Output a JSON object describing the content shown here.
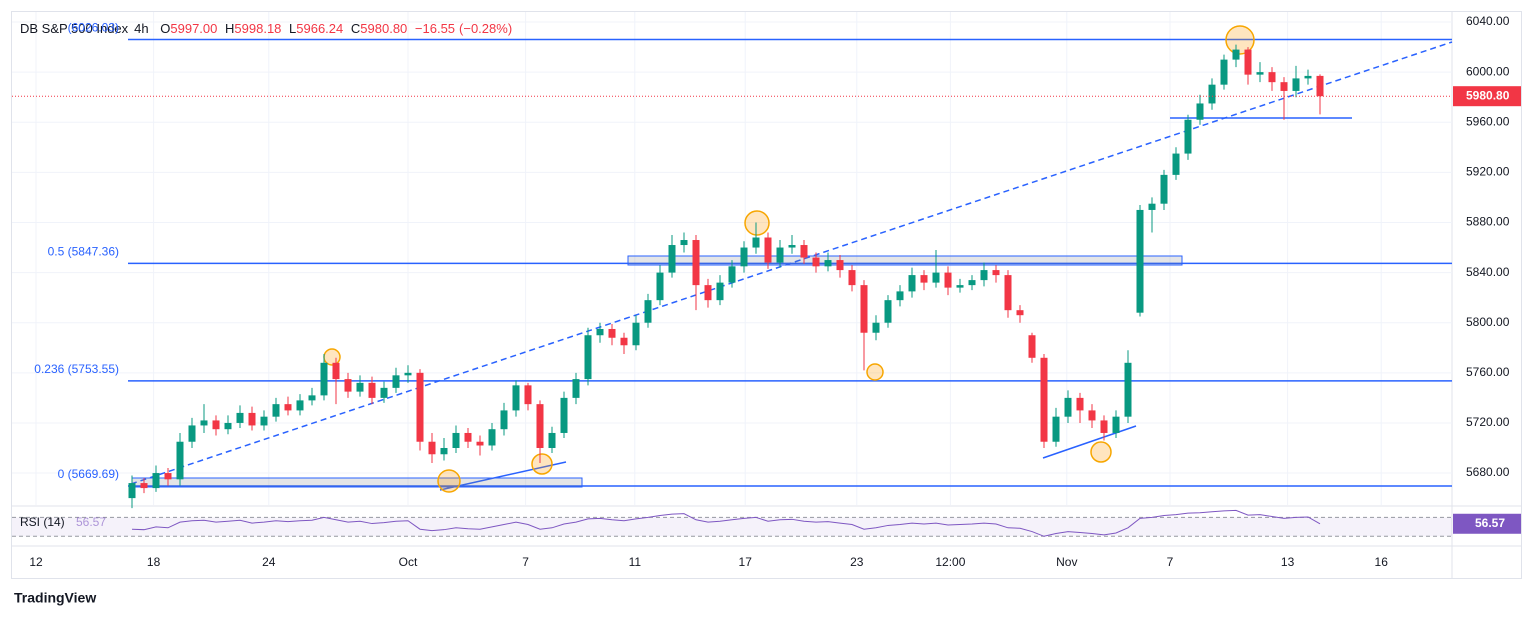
{
  "chart_data": {
    "type": "candlestick",
    "header": {
      "symbol": "DB S&P 500 Index",
      "interval": "4h",
      "open_label": "O",
      "open": "5997.00",
      "high_label": "H",
      "high": "5998.18",
      "low_label": "L",
      "low": "5966.24",
      "close_label": "C",
      "close": "5980.80",
      "change": "−16.55",
      "change_pct": "(−0.28%)"
    },
    "open": [
      5660,
      5672,
      5668,
      5680,
      5675,
      5705,
      5718,
      5722,
      5715,
      5720,
      5728,
      5718,
      5725,
      5735,
      5730,
      5738,
      5742,
      5768,
      5755,
      5745,
      5752,
      5740,
      5748,
      5758,
      5760,
      5705,
      5695,
      5700,
      5712,
      5705,
      5702,
      5715,
      5730,
      5750,
      5735,
      5700,
      5712,
      5740,
      5755,
      5790,
      5795,
      5788,
      5782,
      5800,
      5818,
      5840,
      5862,
      5866,
      5830,
      5818,
      5832,
      5845,
      5860,
      5868,
      5848,
      5860,
      5862,
      5852,
      5845,
      5850,
      5842,
      5830,
      5792,
      5800,
      5818,
      5825,
      5838,
      5832,
      5840,
      5828,
      5830,
      5834,
      5842,
      5838,
      5810,
      5790,
      5772,
      5705,
      5725,
      5740,
      5730,
      5722,
      5712,
      5725,
      5808,
      5890,
      5895,
      5918,
      5935,
      5962,
      5975,
      5990,
      6010,
      6018,
      5998,
      6000,
      5992,
      5985,
      5995,
      5997
    ],
    "high": [
      5678,
      5676,
      5686,
      5684,
      5712,
      5724,
      5735,
      5726,
      5726,
      5734,
      5733,
      5730,
      5740,
      5741,
      5743,
      5748,
      5775,
      5772,
      5760,
      5758,
      5757,
      5753,
      5764,
      5766,
      5763,
      5712,
      5708,
      5718,
      5716,
      5710,
      5720,
      5736,
      5754,
      5752,
      5738,
      5717,
      5745,
      5760,
      5796,
      5800,
      5799,
      5792,
      5806,
      5823,
      5846,
      5870,
      5872,
      5870,
      5835,
      5838,
      5850,
      5865,
      5880,
      5872,
      5866,
      5870,
      5866,
      5856,
      5856,
      5854,
      5846,
      5834,
      5806,
      5822,
      5830,
      5844,
      5842,
      5858,
      5845,
      5835,
      5838,
      5848,
      5846,
      5842,
      5814,
      5792,
      5775,
      5732,
      5746,
      5744,
      5735,
      5726,
      5730,
      5778,
      5894,
      5900,
      5922,
      5940,
      5966,
      5982,
      5995,
      6014,
      6022,
      6020,
      6008,
      6004,
      5996,
      6005,
      6002,
      5998.18
    ],
    "low": [
      5652,
      5664,
      5665,
      5670,
      5670,
      5700,
      5712,
      5710,
      5711,
      5716,
      5714,
      5714,
      5721,
      5726,
      5726,
      5734,
      5738,
      5735,
      5740,
      5741,
      5735,
      5736,
      5744,
      5752,
      5698,
      5688,
      5690,
      5696,
      5700,
      5694,
      5698,
      5710,
      5725,
      5730,
      5688,
      5696,
      5708,
      5735,
      5750,
      5784,
      5782,
      5775,
      5778,
      5796,
      5814,
      5836,
      5856,
      5810,
      5812,
      5814,
      5828,
      5840,
      5855,
      5843,
      5844,
      5855,
      5847,
      5840,
      5841,
      5836,
      5825,
      5762,
      5786,
      5796,
      5813,
      5820,
      5826,
      5828,
      5822,
      5824,
      5826,
      5829,
      5832,
      5804,
      5800,
      5768,
      5700,
      5701,
      5720,
      5720,
      5716,
      5706,
      5708,
      5720,
      5805,
      5872,
      5890,
      5914,
      5930,
      5958,
      5970,
      5986,
      6004,
      5990,
      5992,
      5985,
      5962,
      5980,
      5990,
      5966.24
    ],
    "close": [
      5672,
      5668,
      5680,
      5675,
      5705,
      5718,
      5722,
      5715,
      5720,
      5728,
      5718,
      5725,
      5735,
      5730,
      5738,
      5742,
      5768,
      5755,
      5745,
      5752,
      5740,
      5748,
      5758,
      5760,
      5705,
      5695,
      5700,
      5712,
      5705,
      5702,
      5715,
      5730,
      5750,
      5735,
      5700,
      5712,
      5740,
      5755,
      5790,
      5795,
      5788,
      5782,
      5800,
      5818,
      5840,
      5862,
      5866,
      5830,
      5818,
      5832,
      5845,
      5860,
      5868,
      5848,
      5860,
      5862,
      5852,
      5845,
      5850,
      5842,
      5830,
      5792,
      5800,
      5818,
      5825,
      5838,
      5832,
      5840,
      5828,
      5830,
      5834,
      5842,
      5838,
      5810,
      5806,
      5772,
      5705,
      5725,
      5740,
      5730,
      5722,
      5712,
      5725,
      5768,
      5890,
      5895,
      5918,
      5935,
      5962,
      5975,
      5990,
      6010,
      6018,
      5998,
      6000,
      5992,
      5985,
      5995,
      5997,
      5980.8
    ],
    "up_color": "#089981",
    "down_color": "#f23645",
    "last_price_label": "5980.80",
    "xlim": [
      -10,
      110
    ],
    "xticks": [
      {
        "value": -8,
        "label": "12"
      },
      {
        "value": 1.8,
        "label": "18"
      },
      {
        "value": 11.4,
        "label": "24"
      },
      {
        "value": 23,
        "label": "Oct"
      },
      {
        "value": 32.8,
        "label": "7"
      },
      {
        "value": 41.9,
        "label": "11"
      },
      {
        "value": 51.1,
        "label": "17"
      },
      {
        "value": 60.4,
        "label": "23"
      },
      {
        "value": 68.2,
        "label": "12:00"
      },
      {
        "value": 77.9,
        "label": "Nov"
      },
      {
        "value": 86.5,
        "label": "7"
      },
      {
        "value": 96.3,
        "label": "13"
      },
      {
        "value": 104.1,
        "label": "16"
      }
    ],
    "ylim": [
      5654.5,
      6048
    ],
    "yticks": [
      {
        "value": 5680,
        "label": "5680.00"
      },
      {
        "value": 5720,
        "label": "5720.00"
      },
      {
        "value": 5760,
        "label": "5760.00"
      },
      {
        "value": 5800,
        "label": "5800.00"
      },
      {
        "value": 5840,
        "label": "5840.00"
      },
      {
        "value": 5880,
        "label": "5880.00"
      },
      {
        "value": 5920,
        "label": "5920.00"
      },
      {
        "value": 5960,
        "label": "5960.00"
      },
      {
        "value": 6000,
        "label": "6000.00"
      },
      {
        "value": 6040,
        "label": "6040.00"
      }
    ],
    "levels": [
      {
        "value": 6026.03,
        "label": "(6026.03)"
      },
      {
        "value": 5847.36,
        "label": "0.5 (5847.36)"
      },
      {
        "value": 5753.55,
        "label": "0.236 (5753.55)"
      },
      {
        "value": 5669.69,
        "label": "0 (5669.69)"
      }
    ],
    "level_color": "#2962ff",
    "rsi": {
      "name": "RSI (14)",
      "color": "#7e57c2",
      "ylim": [
        20,
        90
      ],
      "bands": [
        70,
        30
      ],
      "values": [
        45,
        44,
        50,
        48,
        60,
        63,
        64,
        60,
        62,
        64,
        58,
        60,
        63,
        61,
        63,
        64,
        70,
        65,
        60,
        62,
        57,
        59,
        62,
        63,
        45,
        42,
        44,
        48,
        46,
        45,
        50,
        55,
        60,
        55,
        45,
        48,
        56,
        60,
        67,
        68,
        65,
        63,
        67,
        70,
        74,
        77,
        78,
        65,
        60,
        62,
        65,
        68,
        70,
        62,
        65,
        66,
        62,
        60,
        61,
        58,
        55,
        45,
        48,
        53,
        55,
        58,
        56,
        58,
        54,
        55,
        56,
        58,
        56,
        48,
        47,
        40,
        30,
        36,
        40,
        38,
        36,
        33,
        37,
        48,
        68,
        70,
        74,
        76,
        79,
        80,
        82,
        84,
        85,
        75,
        76,
        72,
        68,
        70,
        71,
        56.57
      ]
    },
    "brand": "TradingView"
  }
}
